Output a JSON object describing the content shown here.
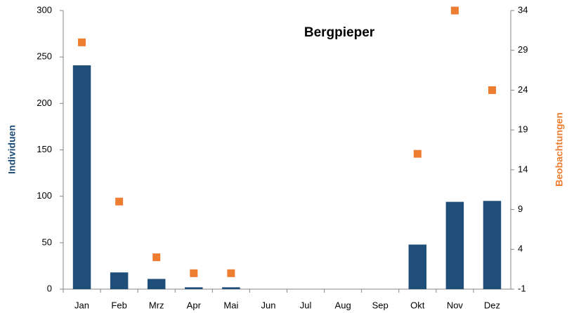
{
  "chart_data": {
    "type": "bar",
    "title": "Bergpieper",
    "categories": [
      "Jan",
      "Feb",
      "Mrz",
      "Apr",
      "Mai",
      "Jun",
      "Jul",
      "Aug",
      "Sep",
      "Okt",
      "Nov",
      "Dez"
    ],
    "series": [
      {
        "name": "Individuen",
        "type": "bar",
        "color": "#1f4e79",
        "values": [
          241,
          18,
          11,
          2,
          2,
          null,
          null,
          null,
          null,
          48,
          94,
          95
        ]
      },
      {
        "name": "Beobachtungen",
        "type": "scatter",
        "axis": "y2",
        "color": "#ed7d31",
        "values": [
          30,
          10,
          3,
          1,
          1,
          null,
          null,
          null,
          null,
          16,
          34,
          24
        ]
      }
    ],
    "ylabel": "Individuen",
    "y2label": "Beobachtungen",
    "ylim": [
      0,
      300
    ],
    "yticks": [
      0,
      50,
      100,
      150,
      200,
      250,
      300
    ],
    "y2lim": [
      -1,
      34
    ],
    "y2ticks": [
      -1,
      4,
      9,
      14,
      19,
      24,
      29,
      34
    ],
    "grid": false
  }
}
